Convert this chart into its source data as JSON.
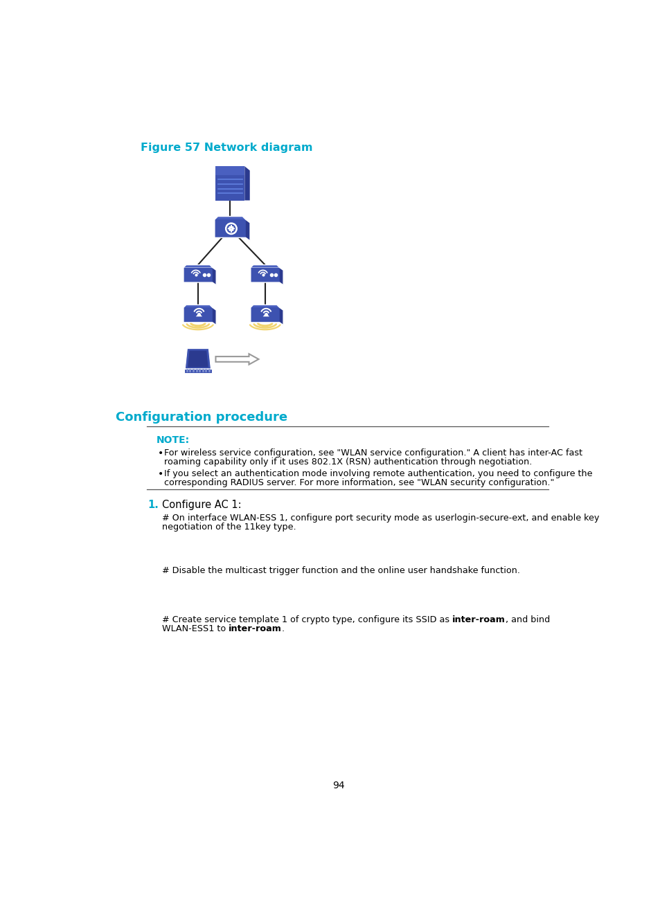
{
  "figure_title": "Figure 57 Network diagram",
  "figure_title_color": "#00AACC",
  "section_title": "Configuration procedure",
  "section_title_color": "#00AACC",
  "note_label": "NOTE:",
  "note_label_color": "#00AACC",
  "step_number": "1.",
  "step_number_color": "#00AACC",
  "step_title": "Configure AC 1:",
  "para1_line1": "# On interface WLAN-ESS 1, configure port security mode as userlogin-secure-ext, and enable key",
  "para1_line2": "negotiation of the 11key type.",
  "para2": "# Disable the multicast trigger function and the online user handshake function.",
  "para3_line1_pre": "# Create service template 1 of crypto type, configure its SSID as ",
  "para3_line1_bold": "inter-roam",
  "para3_line1_post": ", and bind",
  "para3_line2_pre": "WLAN-ESS1 to ",
  "para3_line2_bold": "inter-roam",
  "para3_line2_post": ".",
  "bullet1_line1": "For wireless service configuration, see \"WLAN service configuration.\" A client has inter-AC fast",
  "bullet1_line2": "roaming capability only if it uses 802.1X (RSN) authentication through negotiation.",
  "bullet2_line1": "If you select an authentication mode involving remote authentication, you need to configure the",
  "bullet2_line2": "corresponding RADIUS server. For more information, see \"WLAN security configuration.\"",
  "page_number": "94",
  "bg_color": "#ffffff",
  "text_color": "#000000",
  "icon_color_dark": "#2B3A8F",
  "icon_color_mid": "#3D52B0",
  "icon_color_light": "#5068C8",
  "icon_top_color": "#4A60C0",
  "line_color": "#222222",
  "wifi_color": "#F0D060",
  "arrow_color": "#AAAAAA"
}
